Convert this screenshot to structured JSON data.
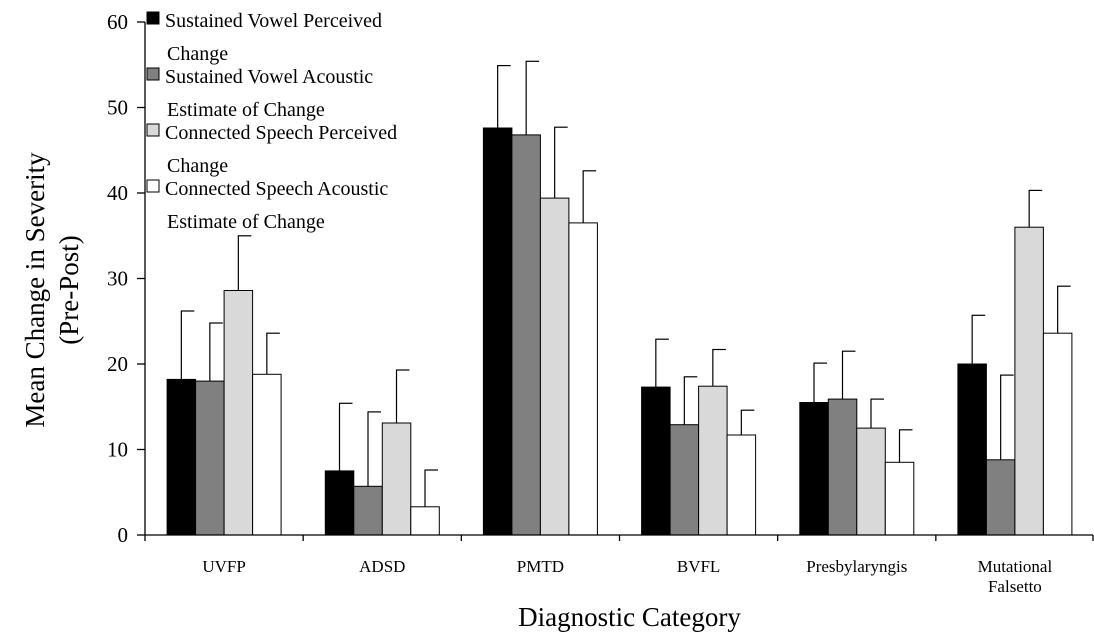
{
  "chart_data": {
    "type": "bar",
    "ylabel": [
      "Mean Change in Severity",
      "(Pre-Post)"
    ],
    "xlabel": "Diagnostic Category",
    "ylim": [
      0,
      60
    ],
    "yticks": [
      0,
      10,
      20,
      30,
      40,
      50,
      60
    ],
    "grid": false,
    "legend_position": "top-left",
    "categories": [
      [
        "UVFP"
      ],
      [
        "ADSD"
      ],
      [
        "PMTD"
      ],
      [
        "BVFL"
      ],
      [
        "Presbylaryngis"
      ],
      [
        "Mutational",
        "Falsetto"
      ]
    ],
    "series": [
      {
        "name": [
          "Sustained Vowel Perceived",
          "Change"
        ],
        "color": "#000000",
        "values": [
          18.2,
          7.5,
          47.6,
          17.3,
          15.5,
          20.0
        ],
        "errors": [
          8.0,
          7.9,
          7.3,
          5.6,
          4.6,
          5.7
        ]
      },
      {
        "name": [
          "Sustained Vowel Acoustic",
          "Estimate of Change"
        ],
        "color": "#808080",
        "values": [
          18.0,
          5.7,
          46.8,
          12.9,
          15.9,
          8.8
        ],
        "errors": [
          6.8,
          8.7,
          8.6,
          5.6,
          5.6,
          9.9
        ]
      },
      {
        "name": [
          "Connected Speech Perceived",
          "Change"
        ],
        "color": "#d9d9d9",
        "values": [
          28.6,
          13.1,
          39.4,
          17.4,
          12.5,
          36.0
        ],
        "errors": [
          6.4,
          6.2,
          8.3,
          4.3,
          3.4,
          4.3
        ]
      },
      {
        "name": [
          "Connected Speech Acoustic",
          "Estimate of Change"
        ],
        "color": "#ffffff",
        "values": [
          18.8,
          3.3,
          36.5,
          11.7,
          8.5,
          23.6
        ],
        "errors": [
          4.8,
          4.3,
          6.1,
          2.9,
          3.8,
          5.5
        ]
      }
    ]
  }
}
